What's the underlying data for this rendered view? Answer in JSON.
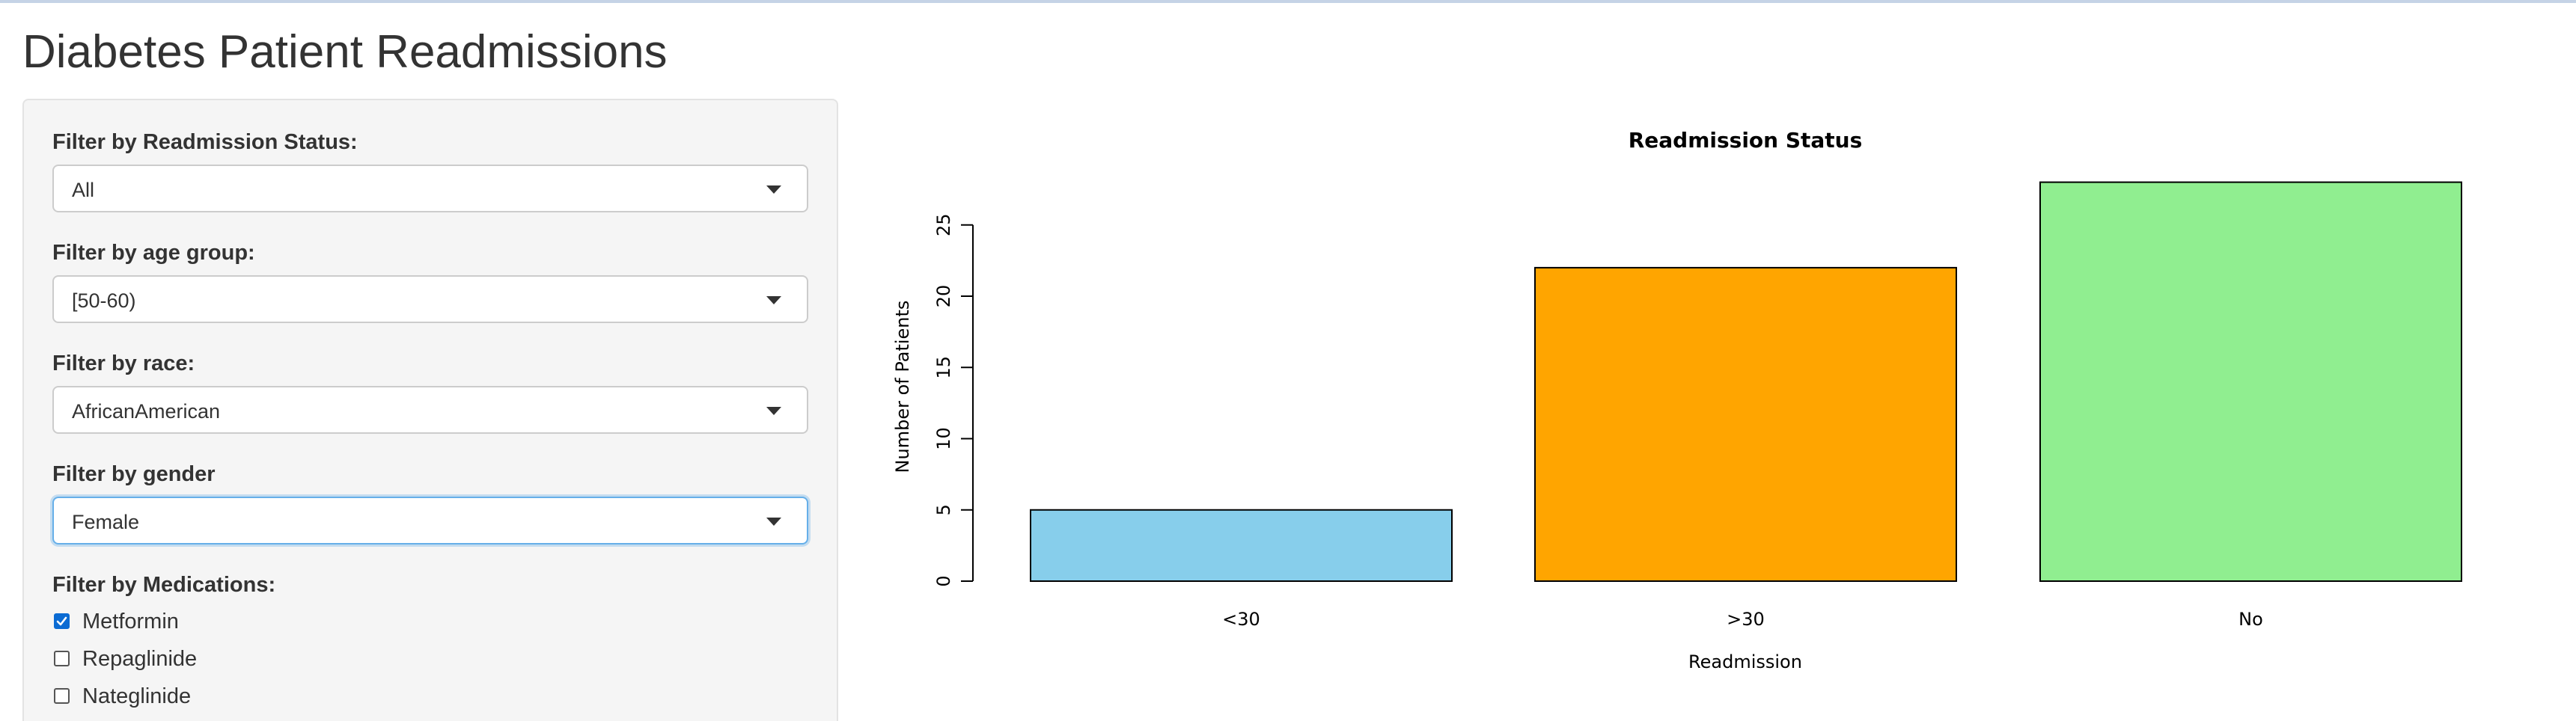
{
  "app": {
    "title": "Diabetes Patient Readmissions"
  },
  "sidebar": {
    "filters": {
      "readmission": {
        "label": "Filter by Readmission Status:",
        "value": "All"
      },
      "age": {
        "label": "Filter by age group:",
        "value": "[50-60)"
      },
      "race": {
        "label": "Filter by race:",
        "value": "AfricanAmerican"
      },
      "gender": {
        "label": "Filter by gender",
        "value": "Female"
      }
    },
    "medications": {
      "label": "Filter by Medications:",
      "options": [
        {
          "label": "Metformin",
          "checked": true
        },
        {
          "label": "Repaglinide",
          "checked": false
        },
        {
          "label": "Nateglinide",
          "checked": false
        }
      ]
    }
  },
  "chart_data": {
    "type": "bar",
    "title": "Readmission Status",
    "xlabel": "Readmission",
    "ylabel": "Number of Patients",
    "categories": [
      "<30",
      ">30",
      "No"
    ],
    "values": [
      5,
      22,
      28
    ],
    "colors": [
      "#87ceeb",
      "#ffa500",
      "#90ee90"
    ],
    "yticks": [
      0,
      5,
      10,
      15,
      20,
      25
    ],
    "ylim": [
      0,
      28
    ],
    "grid": false,
    "legend": "none"
  }
}
